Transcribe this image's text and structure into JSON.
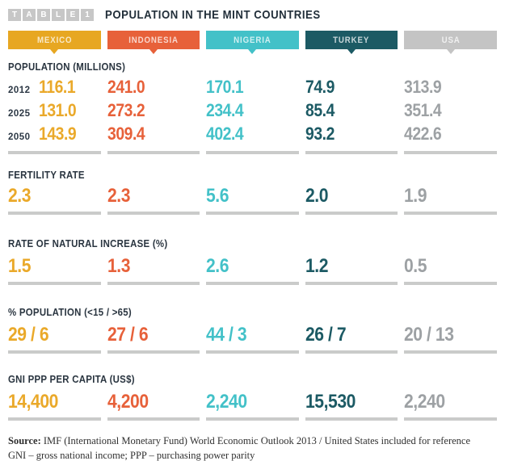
{
  "header": {
    "tag_letters": [
      "T",
      "A",
      "B",
      "L",
      "E",
      "1"
    ],
    "title": "POPULATION IN THE MINT COUNTRIES"
  },
  "countries": [
    {
      "name": "MEXICO",
      "color": "#e7a722",
      "value_color": "#eaa92a"
    },
    {
      "name": "INDONESIA",
      "color": "#e7613a",
      "value_color": "#e7613a"
    },
    {
      "name": "NIGERIA",
      "color": "#43c1c8",
      "value_color": "#43c1c8"
    },
    {
      "name": "TURKEY",
      "color": "#1c5a64",
      "value_color": "#1c5a64"
    },
    {
      "name": "USA",
      "color": "#c4c4c4",
      "value_color": "#9da1a4"
    }
  ],
  "sections": [
    {
      "label": "POPULATION (MILLIONS)",
      "rows": [
        {
          "year": "2012",
          "values": [
            "116.1",
            "241.0",
            "170.1",
            "74.9",
            "313.9"
          ]
        },
        {
          "year": "2025",
          "values": [
            "131.0",
            "273.2",
            "234.4",
            "85.4",
            "351.4"
          ]
        },
        {
          "year": "2050",
          "values": [
            "143.9",
            "309.4",
            "402.4",
            "93.2",
            "422.6"
          ]
        }
      ]
    },
    {
      "label": "FERTILITY RATE",
      "values": [
        "2.3",
        "2.3",
        "5.6",
        "2.0",
        "1.9"
      ]
    },
    {
      "label": "RATE OF NATURAL INCREASE (%)",
      "values": [
        "1.5",
        "1.3",
        "2.6",
        "1.2",
        "0.5"
      ]
    },
    {
      "label": "% POPULATION (<15 / >65)",
      "values": [
        "29 / 6",
        "27 / 6",
        "44 / 3",
        "26 / 7",
        "20 / 13"
      ]
    },
    {
      "label": "GNI PPP PER CAPITA (US$)",
      "values": [
        "14,400",
        "4,200",
        "2,240",
        "15,530",
        "2,240"
      ]
    }
  ],
  "footer": {
    "source_label": "Source:",
    "source_text": " IMF (International Monetary Fund) World Economic Outlook 2013 / United States included for reference",
    "note": "GNI – gross national income; PPP – purchasing power parity"
  },
  "chart_data": {
    "type": "table",
    "title": "POPULATION IN THE MINT COUNTRIES",
    "columns": [
      "MEXICO",
      "INDONESIA",
      "NIGERIA",
      "TURKEY",
      "USA"
    ],
    "rows": [
      {
        "metric": "Population (millions) 2012",
        "values": [
          116.1,
          241.0,
          170.1,
          74.9,
          313.9
        ]
      },
      {
        "metric": "Population (millions) 2025",
        "values": [
          131.0,
          273.2,
          234.4,
          85.4,
          351.4
        ]
      },
      {
        "metric": "Population (millions) 2050",
        "values": [
          143.9,
          309.4,
          402.4,
          93.2,
          422.6
        ]
      },
      {
        "metric": "Fertility rate",
        "values": [
          2.3,
          2.3,
          5.6,
          2.0,
          1.9
        ]
      },
      {
        "metric": "Rate of natural increase (%)",
        "values": [
          1.5,
          1.3,
          2.6,
          1.2,
          0.5
        ]
      },
      {
        "metric": "% population <15",
        "values": [
          29,
          27,
          44,
          26,
          20
        ]
      },
      {
        "metric": "% population >65",
        "values": [
          6,
          6,
          3,
          7,
          13
        ]
      },
      {
        "metric": "GNI PPP per capita (US$)",
        "values": [
          14400,
          4200,
          2240,
          15530,
          2240
        ]
      }
    ],
    "legend_position": "top",
    "notes": "Column headers rendered as colored flag-style badges; USA shown gray as reference country"
  }
}
